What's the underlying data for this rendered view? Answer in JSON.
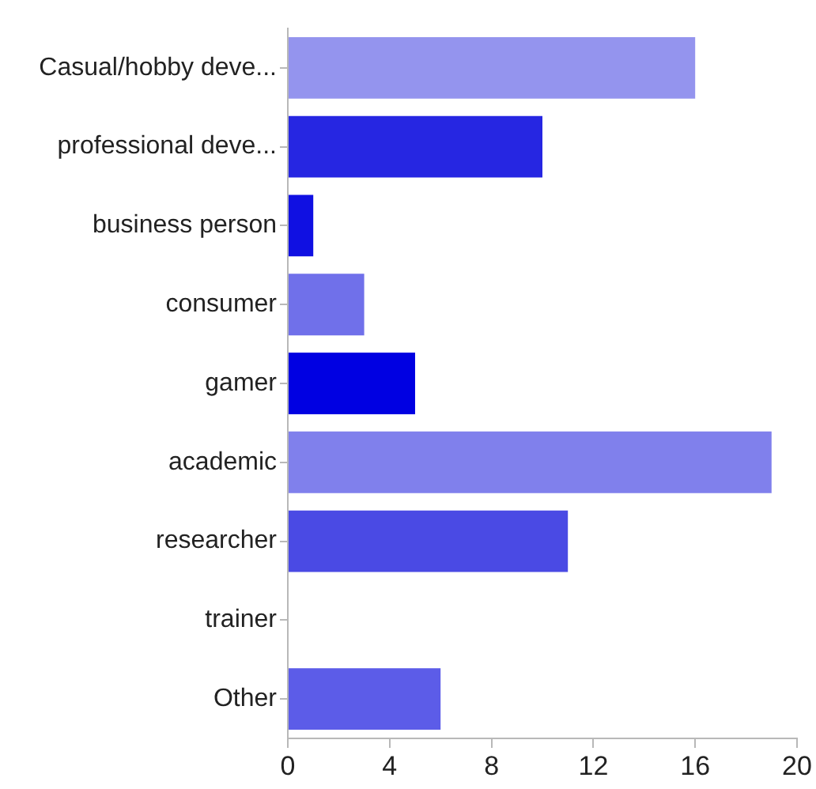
{
  "chart_data": {
    "type": "bar",
    "orientation": "horizontal",
    "categories": [
      "Casual/hobby deve...",
      "professional deve...",
      "business person",
      "consumer",
      "gamer",
      "academic",
      "researcher",
      "trainer",
      "Other"
    ],
    "values": [
      16,
      10,
      1,
      3,
      5,
      19,
      11,
      0,
      6
    ],
    "colors": [
      "#9494ee",
      "#2626e2",
      "#1010e2",
      "#7070ea",
      "#0000e2",
      "#8080ec",
      "#4a4ae4",
      "#5c5ce8",
      "#5c5ce8"
    ],
    "xlim": [
      0,
      20
    ],
    "xticks": [
      0,
      4,
      8,
      12,
      16,
      20
    ],
    "grid": false,
    "legend": false
  }
}
